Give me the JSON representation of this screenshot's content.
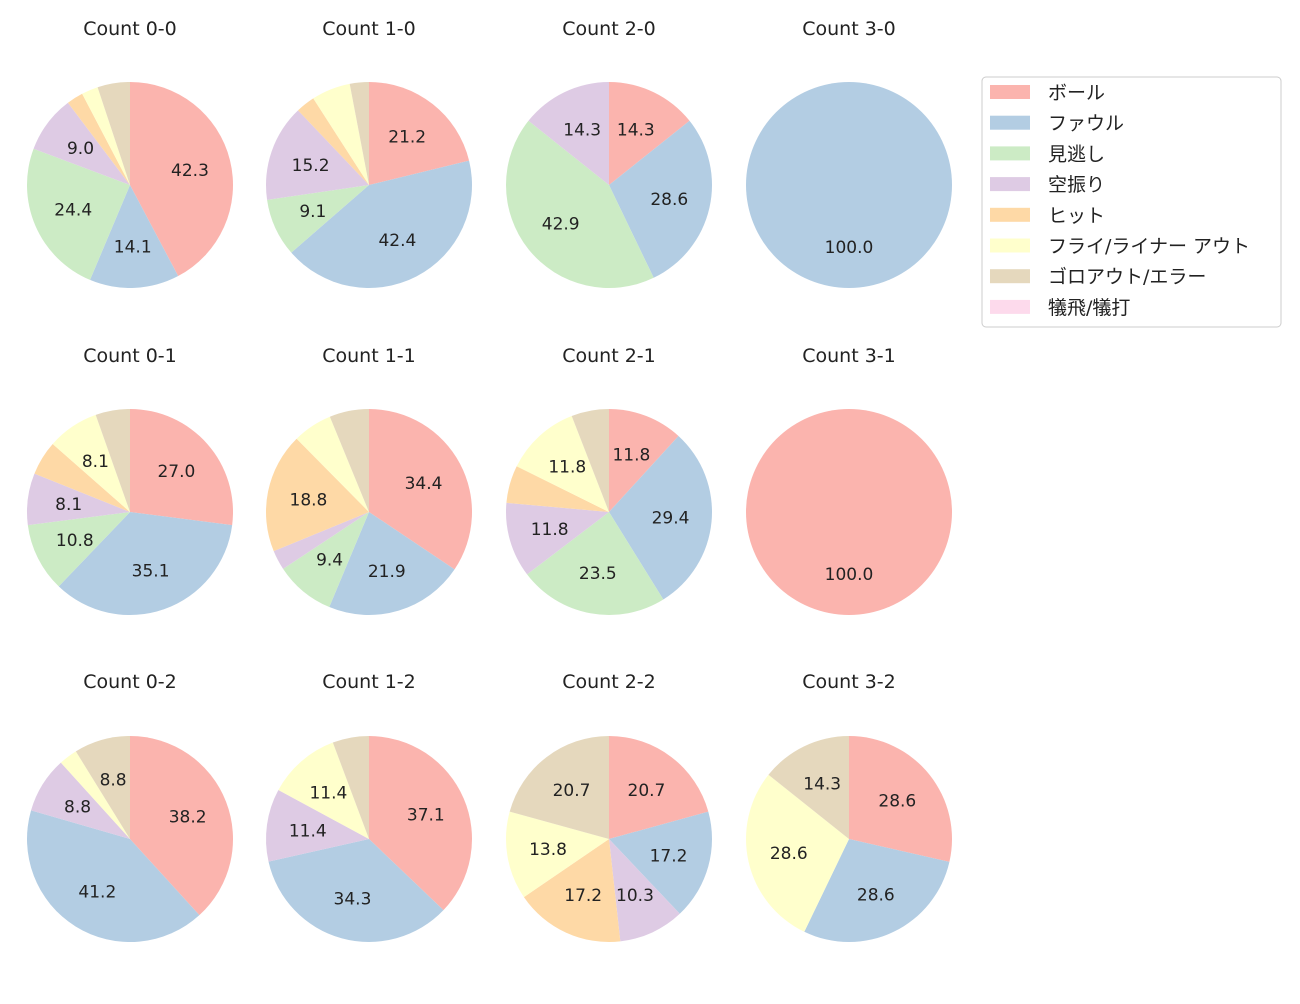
{
  "chart_data": {
    "type": "pie",
    "legend": {
      "placement": "upper-right",
      "entries": [
        "ボール",
        "ファウル",
        "見逃し",
        "空振り",
        "ヒット",
        "フライ/ライナー アウト",
        "ゴロアウト/エラー",
        "犠飛/犠打"
      ]
    },
    "colors": [
      "#fbb4ae",
      "#b3cde3",
      "#ccebc5",
      "#decbe4",
      "#fed9a6",
      "#ffffcc",
      "#e5d8bd",
      "#fddaec"
    ],
    "start_angle_deg": 90,
    "direction": "clockwise",
    "pies": [
      {
        "title": "Count 0-0",
        "values": [
          42.3,
          14.1,
          24.4,
          9.0,
          2.6,
          2.6,
          5.1,
          0
        ]
      },
      {
        "title": "Count 1-0",
        "values": [
          21.2,
          42.4,
          9.1,
          15.2,
          3.0,
          6.1,
          3.0,
          0
        ]
      },
      {
        "title": "Count 2-0",
        "values": [
          14.3,
          28.6,
          42.9,
          14.3,
          0,
          0,
          0,
          0
        ]
      },
      {
        "title": "Count 3-0",
        "values": [
          0,
          100.0,
          0,
          0,
          0,
          0,
          0,
          0
        ]
      },
      {
        "title": "Count 0-1",
        "values": [
          27.0,
          35.1,
          10.8,
          8.1,
          5.4,
          8.1,
          5.4,
          0
        ]
      },
      {
        "title": "Count 1-1",
        "values": [
          34.4,
          21.9,
          9.4,
          3.1,
          18.8,
          6.2,
          6.2,
          0
        ]
      },
      {
        "title": "Count 2-1",
        "values": [
          11.8,
          29.4,
          23.5,
          11.8,
          5.9,
          11.8,
          5.9,
          0
        ]
      },
      {
        "title": "Count 3-1",
        "values": [
          100.0,
          0,
          0,
          0,
          0,
          0,
          0,
          0
        ]
      },
      {
        "title": "Count 0-2",
        "values": [
          38.2,
          41.2,
          0,
          8.8,
          0,
          2.9,
          8.8,
          0
        ]
      },
      {
        "title": "Count 1-2",
        "values": [
          37.1,
          34.3,
          0,
          11.4,
          0,
          11.4,
          5.7,
          0
        ]
      },
      {
        "title": "Count 2-2",
        "values": [
          20.7,
          17.2,
          0,
          10.3,
          17.2,
          13.8,
          20.7,
          0
        ]
      },
      {
        "title": "Count 3-2",
        "values": [
          28.6,
          28.6,
          0,
          0,
          0,
          28.6,
          14.3,
          0
        ]
      }
    ]
  }
}
